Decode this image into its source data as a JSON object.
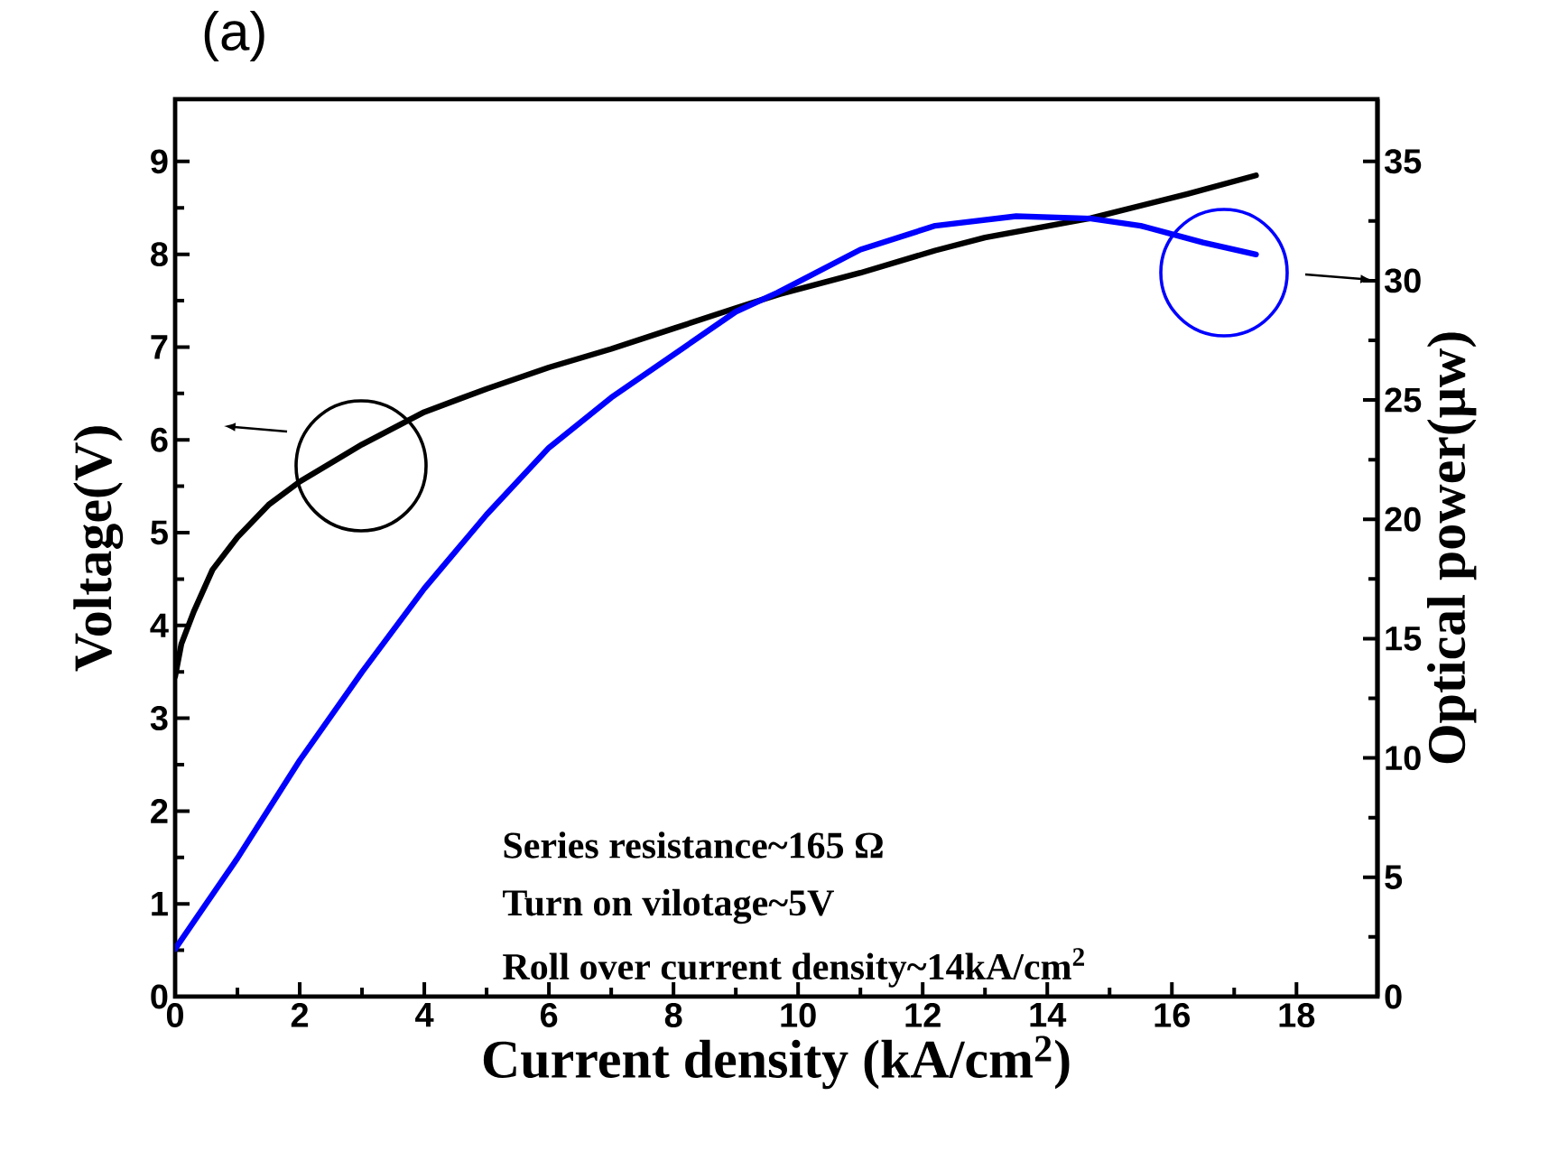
{
  "chart_data": {
    "type": "line",
    "title": "(a)",
    "xlabel": "Current density (kA/cm$^{2}$)",
    "ylabel": "Voltage(V)",
    "y2label": "Optical power(μw)",
    "xlim": [
      0,
      19.3
    ],
    "xticks": [
      0,
      2,
      4,
      6,
      8,
      10,
      12,
      14,
      16,
      18
    ],
    "ylim": [
      0,
      9.67
    ],
    "yticks": [
      0,
      1,
      2,
      3,
      4,
      5,
      6,
      7,
      8,
      9
    ],
    "y2lim": [
      0,
      37.6
    ],
    "y2ticks": [
      0,
      5,
      10,
      15,
      20,
      25,
      30,
      35
    ],
    "series": [
      {
        "color": "#000000",
        "axis": "y",
        "x": [
          0,
          0.1,
          0.3,
          0.6,
          1,
          1.5,
          2,
          3,
          4,
          5,
          6,
          7,
          8,
          9,
          9.7,
          11,
          12.2,
          13,
          14.7,
          16.25,
          17.35
        ],
        "values": [
          3.45,
          3.8,
          4.15,
          4.6,
          4.95,
          5.3,
          5.55,
          5.95,
          6.3,
          6.55,
          6.78,
          6.98,
          7.2,
          7.42,
          7.57,
          7.8,
          8.04,
          8.18,
          8.39,
          8.65,
          8.85
        ]
      },
      {
        "color": "#0000ff",
        "axis": "y2",
        "x": [
          0,
          1,
          2,
          3,
          4,
          5,
          6,
          7,
          8,
          9,
          9.67,
          11,
          12.2,
          13.5,
          14.7,
          15.5,
          16.5,
          17.35
        ],
        "values": [
          2.0,
          5.8,
          9.9,
          13.6,
          17.1,
          20.2,
          23.0,
          25.1,
          26.9,
          28.7,
          29.5,
          31.3,
          32.3,
          32.7,
          32.6,
          32.3,
          31.6,
          31.1
        ]
      }
    ],
    "annotations": [
      "Series resistance~165 Ω",
      "Turn on vilotage~5V",
      "Roll over current density~14kA/cm$^{2}$"
    ]
  }
}
